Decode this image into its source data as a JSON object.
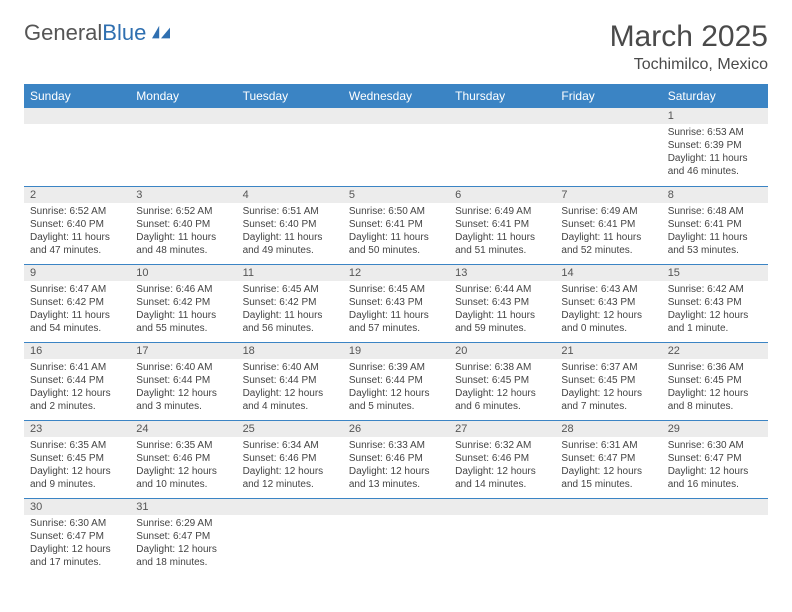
{
  "logo": {
    "part1": "General",
    "part2": "Blue"
  },
  "title": "March 2025",
  "location": "Tochimilco, Mexico",
  "colors": {
    "header_bg": "#3b84c4",
    "header_text": "#ffffff",
    "daybar_bg": "#ececec",
    "rule": "#3b84c4",
    "body_text": "#444444",
    "title_text": "#4a4a4a",
    "logo_gray": "#555555",
    "logo_blue": "#2f6fb0"
  },
  "weekdays": [
    "Sunday",
    "Monday",
    "Tuesday",
    "Wednesday",
    "Thursday",
    "Friday",
    "Saturday"
  ],
  "weeks": [
    [
      null,
      null,
      null,
      null,
      null,
      null,
      {
        "n": "1",
        "sr": "6:53 AM",
        "ss": "6:39 PM",
        "dl": "11 hours and 46 minutes."
      }
    ],
    [
      {
        "n": "2",
        "sr": "6:52 AM",
        "ss": "6:40 PM",
        "dl": "11 hours and 47 minutes."
      },
      {
        "n": "3",
        "sr": "6:52 AM",
        "ss": "6:40 PM",
        "dl": "11 hours and 48 minutes."
      },
      {
        "n": "4",
        "sr": "6:51 AM",
        "ss": "6:40 PM",
        "dl": "11 hours and 49 minutes."
      },
      {
        "n": "5",
        "sr": "6:50 AM",
        "ss": "6:41 PM",
        "dl": "11 hours and 50 minutes."
      },
      {
        "n": "6",
        "sr": "6:49 AM",
        "ss": "6:41 PM",
        "dl": "11 hours and 51 minutes."
      },
      {
        "n": "7",
        "sr": "6:49 AM",
        "ss": "6:41 PM",
        "dl": "11 hours and 52 minutes."
      },
      {
        "n": "8",
        "sr": "6:48 AM",
        "ss": "6:41 PM",
        "dl": "11 hours and 53 minutes."
      }
    ],
    [
      {
        "n": "9",
        "sr": "6:47 AM",
        "ss": "6:42 PM",
        "dl": "11 hours and 54 minutes."
      },
      {
        "n": "10",
        "sr": "6:46 AM",
        "ss": "6:42 PM",
        "dl": "11 hours and 55 minutes."
      },
      {
        "n": "11",
        "sr": "6:45 AM",
        "ss": "6:42 PM",
        "dl": "11 hours and 56 minutes."
      },
      {
        "n": "12",
        "sr": "6:45 AM",
        "ss": "6:43 PM",
        "dl": "11 hours and 57 minutes."
      },
      {
        "n": "13",
        "sr": "6:44 AM",
        "ss": "6:43 PM",
        "dl": "11 hours and 59 minutes."
      },
      {
        "n": "14",
        "sr": "6:43 AM",
        "ss": "6:43 PM",
        "dl": "12 hours and 0 minutes."
      },
      {
        "n": "15",
        "sr": "6:42 AM",
        "ss": "6:43 PM",
        "dl": "12 hours and 1 minute."
      }
    ],
    [
      {
        "n": "16",
        "sr": "6:41 AM",
        "ss": "6:44 PM",
        "dl": "12 hours and 2 minutes."
      },
      {
        "n": "17",
        "sr": "6:40 AM",
        "ss": "6:44 PM",
        "dl": "12 hours and 3 minutes."
      },
      {
        "n": "18",
        "sr": "6:40 AM",
        "ss": "6:44 PM",
        "dl": "12 hours and 4 minutes."
      },
      {
        "n": "19",
        "sr": "6:39 AM",
        "ss": "6:44 PM",
        "dl": "12 hours and 5 minutes."
      },
      {
        "n": "20",
        "sr": "6:38 AM",
        "ss": "6:45 PM",
        "dl": "12 hours and 6 minutes."
      },
      {
        "n": "21",
        "sr": "6:37 AM",
        "ss": "6:45 PM",
        "dl": "12 hours and 7 minutes."
      },
      {
        "n": "22",
        "sr": "6:36 AM",
        "ss": "6:45 PM",
        "dl": "12 hours and 8 minutes."
      }
    ],
    [
      {
        "n": "23",
        "sr": "6:35 AM",
        "ss": "6:45 PM",
        "dl": "12 hours and 9 minutes."
      },
      {
        "n": "24",
        "sr": "6:35 AM",
        "ss": "6:46 PM",
        "dl": "12 hours and 10 minutes."
      },
      {
        "n": "25",
        "sr": "6:34 AM",
        "ss": "6:46 PM",
        "dl": "12 hours and 12 minutes."
      },
      {
        "n": "26",
        "sr": "6:33 AM",
        "ss": "6:46 PM",
        "dl": "12 hours and 13 minutes."
      },
      {
        "n": "27",
        "sr": "6:32 AM",
        "ss": "6:46 PM",
        "dl": "12 hours and 14 minutes."
      },
      {
        "n": "28",
        "sr": "6:31 AM",
        "ss": "6:47 PM",
        "dl": "12 hours and 15 minutes."
      },
      {
        "n": "29",
        "sr": "6:30 AM",
        "ss": "6:47 PM",
        "dl": "12 hours and 16 minutes."
      }
    ],
    [
      {
        "n": "30",
        "sr": "6:30 AM",
        "ss": "6:47 PM",
        "dl": "12 hours and 17 minutes."
      },
      {
        "n": "31",
        "sr": "6:29 AM",
        "ss": "6:47 PM",
        "dl": "12 hours and 18 minutes."
      },
      null,
      null,
      null,
      null,
      null
    ]
  ],
  "labels": {
    "sunrise": "Sunrise: ",
    "sunset": "Sunset: ",
    "daylight": "Daylight: "
  }
}
